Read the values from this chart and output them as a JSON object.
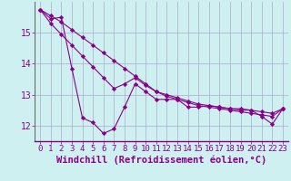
{
  "xlabel": "Windchill (Refroidissement éolien,°C)",
  "background_color": "#cff0f0",
  "grid_color": "#aaaacc",
  "line_color": "#880088",
  "x_values": [
    0,
    1,
    2,
    3,
    4,
    5,
    6,
    7,
    8,
    9,
    10,
    11,
    12,
    13,
    14,
    15,
    16,
    17,
    18,
    19,
    20,
    21,
    22,
    23
  ],
  "line1_y": [
    15.75,
    15.45,
    15.5,
    13.85,
    12.25,
    12.1,
    11.75,
    11.9,
    12.6,
    13.35,
    13.1,
    12.85,
    12.85,
    12.85,
    12.6,
    12.6,
    12.65,
    12.6,
    12.55,
    12.55,
    12.5,
    12.3,
    12.05,
    12.55
  ],
  "line2_y": [
    15.75,
    15.3,
    14.95,
    14.6,
    14.25,
    13.9,
    13.55,
    13.2,
    13.35,
    13.55,
    13.3,
    13.1,
    13.0,
    12.9,
    12.8,
    12.7,
    12.65,
    12.6,
    12.55,
    12.5,
    12.5,
    12.45,
    12.4,
    12.55
  ],
  "line3_y": [
    15.75,
    15.55,
    15.35,
    15.1,
    14.85,
    14.6,
    14.35,
    14.1,
    13.85,
    13.6,
    13.35,
    13.1,
    12.95,
    12.85,
    12.75,
    12.65,
    12.6,
    12.55,
    12.5,
    12.45,
    12.4,
    12.35,
    12.3,
    12.55
  ],
  "ylim": [
    11.5,
    16.0
  ],
  "xlim": [
    -0.5,
    23.5
  ],
  "yticks": [
    12,
    13,
    14,
    15
  ],
  "xticks": [
    0,
    1,
    2,
    3,
    4,
    5,
    6,
    7,
    8,
    9,
    10,
    11,
    12,
    13,
    14,
    15,
    16,
    17,
    18,
    19,
    20,
    21,
    22,
    23
  ],
  "tick_fontsize": 6.5,
  "xlabel_fontsize": 7.5
}
